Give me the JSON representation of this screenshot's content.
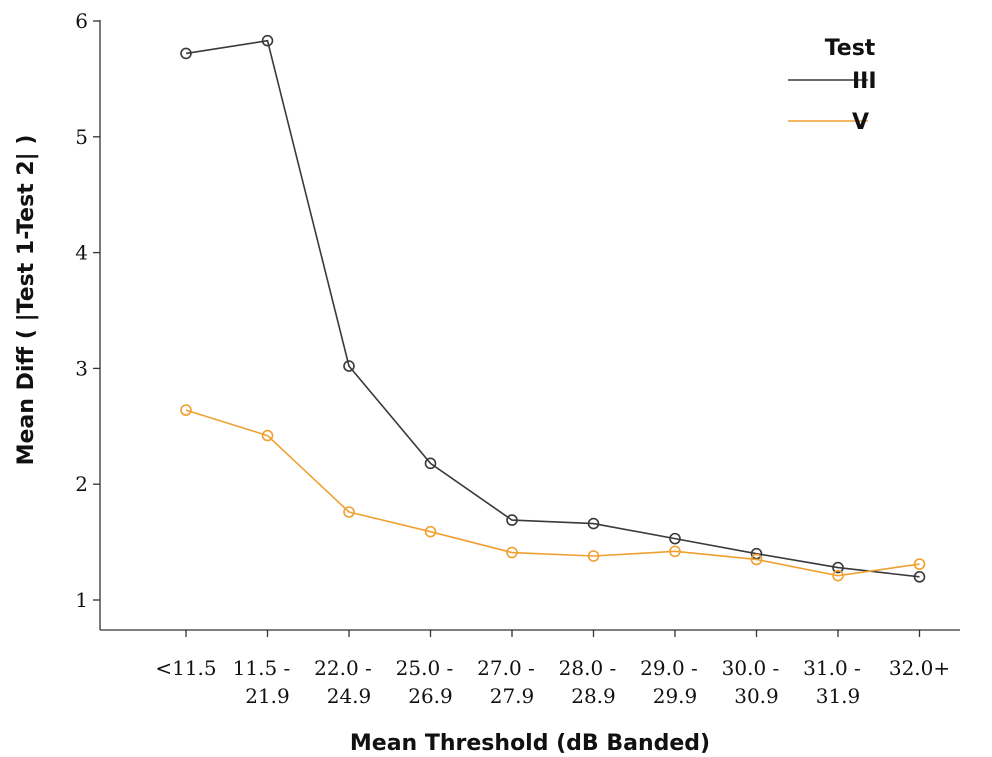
{
  "chart_data": {
    "type": "line",
    "xlabel": "Mean Threshold (dB Banded)",
    "ylabel": "Mean Diff ( |Test 1-Test 2| )",
    "ylim": [
      0.8,
      6
    ],
    "yticks": [
      1,
      2,
      3,
      4,
      5,
      6
    ],
    "grid": false,
    "legend": {
      "title": "Test",
      "placement": "top-right"
    },
    "categories": [
      [
        "<11.5"
      ],
      [
        "11.5 -",
        "21.9"
      ],
      [
        "22.0 -",
        "24.9"
      ],
      [
        "25.0 -",
        "26.9"
      ],
      [
        "27.0 -",
        "27.9"
      ],
      [
        "28.0 -",
        "28.9"
      ],
      [
        "29.0 -",
        "29.9"
      ],
      [
        "30.0 -",
        "30.9"
      ],
      [
        "31.0 -",
        "31.9"
      ],
      [
        "32.0+"
      ]
    ],
    "series": [
      {
        "name": "III",
        "color": "#3a3a3a",
        "values": [
          5.72,
          5.83,
          3.02,
          2.18,
          1.69,
          1.66,
          1.53,
          1.4,
          1.28,
          1.2
        ]
      },
      {
        "name": "V",
        "color": "#f0a030",
        "values": [
          2.64,
          2.42,
          1.76,
          1.59,
          1.41,
          1.38,
          1.42,
          1.35,
          1.21,
          1.31
        ]
      }
    ]
  }
}
